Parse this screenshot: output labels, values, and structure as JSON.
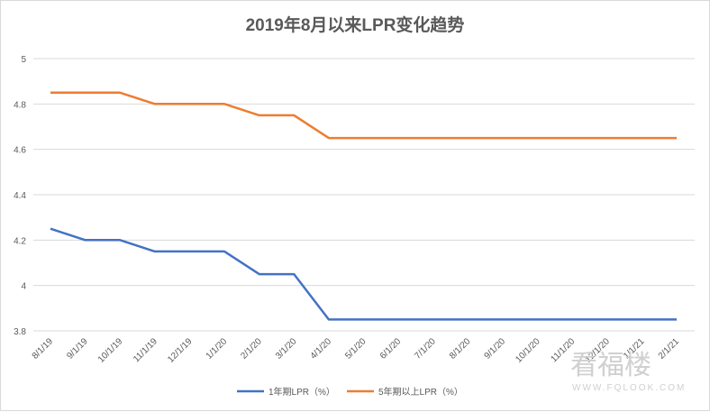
{
  "chart_data": {
    "type": "line",
    "title": "2019年8月以来LPR变化趋势",
    "categories": [
      "8/1/19",
      "9/1/19",
      "10/1/19",
      "11/1/19",
      "12/1/19",
      "1/1/20",
      "2/1/20",
      "3/1/20",
      "4/1/20",
      "5/1/20",
      "6/1/20",
      "7/1/20",
      "8/1/20",
      "9/1/20",
      "10/1/20",
      "11/1/20",
      "12/1/20",
      "1/1/21",
      "2/1/21"
    ],
    "series": [
      {
        "name": "1年期LPR（%）",
        "color": "#4472c4",
        "values": [
          4.25,
          4.2,
          4.2,
          4.15,
          4.15,
          4.15,
          4.05,
          4.05,
          3.85,
          3.85,
          3.85,
          3.85,
          3.85,
          3.85,
          3.85,
          3.85,
          3.85,
          3.85,
          3.85
        ]
      },
      {
        "name": "5年期以上LPR（%）",
        "color": "#ed7d31",
        "values": [
          4.85,
          4.85,
          4.85,
          4.8,
          4.8,
          4.8,
          4.75,
          4.75,
          4.65,
          4.65,
          4.65,
          4.65,
          4.65,
          4.65,
          4.65,
          4.65,
          4.65,
          4.65,
          4.65
        ]
      }
    ],
    "yticks": [
      "5",
      "4.8",
      "4.6",
      "4.4",
      "4.2",
      "4",
      "3.8"
    ],
    "ylim": [
      3.8,
      5.0
    ],
    "grid": true,
    "legend": "bottom"
  },
  "watermark": {
    "main": "看福楼",
    "sub": "WWW.FQLOOK.COM"
  }
}
